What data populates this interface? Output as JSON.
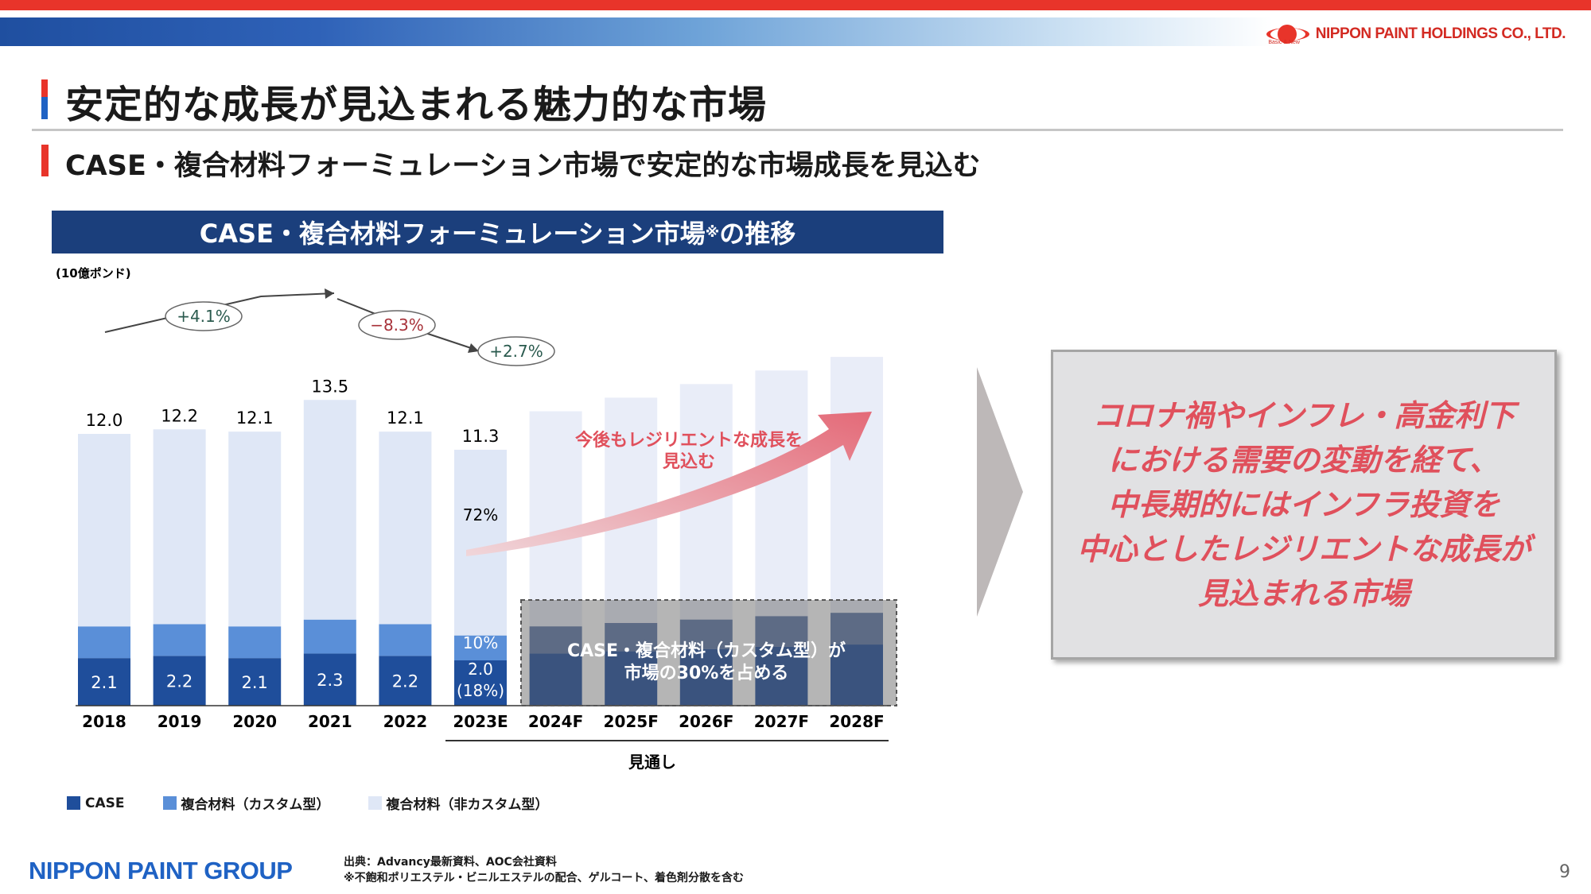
{
  "header": {
    "company": "NIPPON PAINT HOLDINGS CO., LTD.",
    "tagline": "Basic & New"
  },
  "title": "安定的な成長が見込まれる魅力的な市場",
  "subtitle": "CASE・複合材料フォーミュレーション市場で安定的な市場成長を見込む",
  "chart_header": {
    "main": "CASE・複合材料フォーミュレーション市場",
    "mark": "※",
    "tail": "の推移"
  },
  "colors": {
    "case": "#1f4e9b",
    "custom": "#5a8fd8",
    "noncustom": "#dfe7f6",
    "forecast": "#e9edf8",
    "growth_pos": "#2a5a4e",
    "growth_neg": "#a8323a",
    "callout_text": "#e0505c"
  },
  "chart_data": {
    "type": "bar",
    "stacked": true,
    "unit": "(10億ポンド)",
    "categories": [
      "2018",
      "2019",
      "2020",
      "2021",
      "2022",
      "2023E",
      "2024F",
      "2025F",
      "2026F",
      "2027F",
      "2028F"
    ],
    "totals": [
      12.0,
      12.2,
      12.1,
      13.5,
      12.1,
      11.3,
      null,
      null,
      null,
      null,
      null
    ],
    "total_labels": [
      "12.0",
      "12.2",
      "12.1",
      "13.5",
      "12.1",
      "11.3"
    ],
    "series": [
      {
        "name": "CASE",
        "values": [
          2.1,
          2.2,
          2.1,
          2.3,
          2.2,
          2.0,
          null,
          null,
          null,
          null,
          null
        ]
      },
      {
        "name": "複合材料（カスタム型）",
        "values": [
          1.4,
          1.4,
          1.4,
          1.5,
          1.4,
          1.1,
          null,
          null,
          null,
          null,
          null
        ]
      },
      {
        "name": "複合材料（非カスタム型）",
        "values": [
          8.5,
          8.6,
          8.6,
          9.7,
          8.5,
          8.2,
          null,
          null,
          null,
          null,
          null
        ]
      }
    ],
    "segment_labels": [
      "2.1",
      "2.2",
      "2.1",
      "2.3",
      "2.2",
      "2.0"
    ],
    "annot_2023E": {
      "pct_noncustom": "72%",
      "pct_custom": "10%",
      "pct_case": "(18%)"
    },
    "growth": [
      {
        "label": "+4.1%",
        "kind": "pos"
      },
      {
        "label": "−8.3%",
        "kind": "neg"
      },
      {
        "label": "+2.7%",
        "kind": "pos"
      }
    ],
    "forecast_label": "見通し",
    "trend_note": "今後もレジリエントな成長を\n見込む",
    "box_note": "CASE・複合材料（カスタム型）が\n市場の30%を占める",
    "ylim": [
      0,
      14
    ]
  },
  "callout": "コロナ禍やインフレ・高金利下\nにおける需要の変動を経て、\n中長期的にはインフラ投資を\n中心としたレジリエントな成長が\n見込まれる市場",
  "legend": [
    {
      "name": "CASE",
      "color": "#1f4e9b"
    },
    {
      "name": "複合材料（カスタム型）",
      "color": "#5a8fd8"
    },
    {
      "name": "複合材料（非カスタム型）",
      "color": "#dfe7f6"
    }
  ],
  "footer": {
    "group": "NIPPON PAINT GROUP",
    "source": "出典：Advancy最新資料、AOC会社資料\n※不飽和ポリエステル・ビニルエステルの配合、ゲルコート、着色剤分散を含む",
    "page": "9"
  }
}
